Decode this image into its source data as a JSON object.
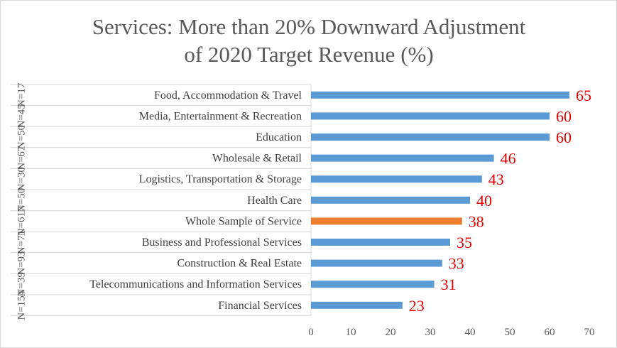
{
  "chart_data": {
    "type": "bar",
    "orientation": "horizontal",
    "title_lines": [
      "Services:  More than 20% Downward Adjustment",
      "of 2020 Target Revenue (%)"
    ],
    "categories": [
      "Food, Accommodation & Travel",
      "Media, Entertainment & Recreation",
      "Education",
      "Wholesale & Retail",
      "Logistics, Transportation & Storage",
      "Health Care",
      "Whole Sample of Service",
      "Business and Professional Services",
      "Construction & Real Estate",
      "Telecommunications and Information Services",
      "Financial Services"
    ],
    "n_labels": [
      "N=17",
      "N=45",
      "N=50",
      "N=67",
      "N=30",
      "N=50",
      "N=617",
      "N=71",
      "N=93",
      "N=39",
      "N=154"
    ],
    "values": [
      65,
      60,
      60,
      46,
      43,
      40,
      38,
      35,
      33,
      31,
      23
    ],
    "data_labels": [
      "65",
      "60",
      "60",
      "46",
      "43",
      "40",
      "38",
      "35",
      "33",
      "31",
      "23"
    ],
    "highlight_index": 6,
    "xlim": [
      0,
      70
    ],
    "xticks": [
      "0",
      "10",
      "20",
      "30",
      "40",
      "50",
      "60",
      "70"
    ],
    "xlabel": "",
    "ylabel": "",
    "grid": false,
    "legend": "none",
    "colors": {
      "bar": "#5b9bd5",
      "highlight": "#ed7d31",
      "data_label": "#e60000",
      "title": "#595959",
      "axis_line": "#d9d9d9"
    }
  }
}
